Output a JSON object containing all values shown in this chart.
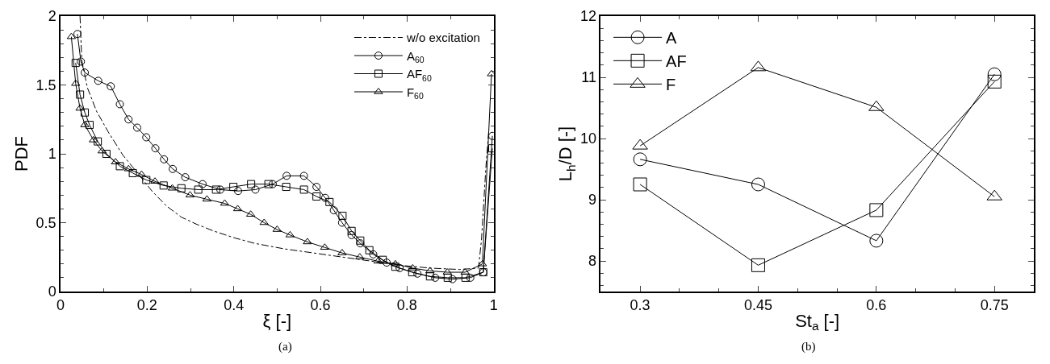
{
  "chart_data": [
    {
      "type": "line",
      "xlabel": "ξ [-]",
      "ylabel": "PDF",
      "xlim": [
        0,
        1
      ],
      "ylim": [
        0,
        2
      ],
      "xticks": [
        0,
        0.2,
        0.4,
        0.6,
        0.8,
        1
      ],
      "yticks": [
        0,
        0.5,
        1,
        1.5,
        2
      ],
      "legend": "top right",
      "annotations": [
        "(a)"
      ],
      "series": [
        {
          "name": "w/o excitation",
          "color": "#000000",
          "marker": "none",
          "line_style": "dashdot",
          "x": [
            0.045,
            0.049,
            0.062,
            0.083,
            0.11,
            0.144,
            0.178,
            0.211,
            0.245,
            0.279,
            0.313,
            0.353,
            0.401,
            0.448,
            0.516,
            0.584,
            0.651,
            0.719,
            0.786,
            0.854,
            0.921,
            0.965,
            0.972,
            0.982,
            0.989
          ],
          "values": [
            2.0,
            1.68,
            1.48,
            1.31,
            1.16,
            0.99,
            0.86,
            0.73,
            0.62,
            0.54,
            0.49,
            0.44,
            0.39,
            0.35,
            0.31,
            0.28,
            0.25,
            0.22,
            0.19,
            0.17,
            0.16,
            0.17,
            0.38,
            0.9,
            1.18
          ]
        },
        {
          "name": "A$_{60}$",
          "color": "#000000",
          "marker": "circle",
          "line_style": "solid",
          "x": [
            0.039,
            0.047,
            0.056,
            0.087,
            0.116,
            0.137,
            0.157,
            0.177,
            0.198,
            0.219,
            0.239,
            0.259,
            0.288,
            0.328,
            0.369,
            0.41,
            0.45,
            0.49,
            0.522,
            0.562,
            0.591,
            0.611,
            0.631,
            0.65,
            0.672,
            0.692,
            0.722,
            0.753,
            0.783,
            0.824,
            0.865,
            0.905,
            0.946,
            0.976,
            0.997
          ],
          "values": [
            1.87,
            1.67,
            1.59,
            1.53,
            1.49,
            1.36,
            1.25,
            1.19,
            1.12,
            1.04,
            0.96,
            0.89,
            0.83,
            0.78,
            0.74,
            0.73,
            0.74,
            0.78,
            0.84,
            0.84,
            0.76,
            0.68,
            0.59,
            0.5,
            0.41,
            0.35,
            0.27,
            0.21,
            0.17,
            0.13,
            0.1,
            0.09,
            0.1,
            0.14,
            1.13
          ]
        },
        {
          "name": "AF$_{60}$",
          "color": "#000000",
          "marker": "square",
          "line_style": "solid",
          "x": [
            0.035,
            0.045,
            0.056,
            0.067,
            0.086,
            0.106,
            0.137,
            0.167,
            0.198,
            0.238,
            0.279,
            0.318,
            0.359,
            0.399,
            0.44,
            0.48,
            0.521,
            0.562,
            0.591,
            0.621,
            0.651,
            0.672,
            0.692,
            0.713,
            0.744,
            0.773,
            0.812,
            0.853,
            0.894,
            0.935,
            0.976,
            0.997
          ],
          "values": [
            1.66,
            1.43,
            1.3,
            1.21,
            1.09,
            1.0,
            0.91,
            0.86,
            0.81,
            0.77,
            0.75,
            0.74,
            0.74,
            0.76,
            0.78,
            0.78,
            0.76,
            0.74,
            0.69,
            0.65,
            0.55,
            0.44,
            0.37,
            0.3,
            0.23,
            0.18,
            0.14,
            0.11,
            0.1,
            0.1,
            0.14,
            1.04
          ]
        },
        {
          "name": "F$_{60}$",
          "color": "#000000",
          "marker": "triangle",
          "line_style": "solid",
          "x": [
            0.025,
            0.035,
            0.045,
            0.056,
            0.076,
            0.096,
            0.127,
            0.157,
            0.187,
            0.218,
            0.258,
            0.299,
            0.338,
            0.379,
            0.409,
            0.439,
            0.47,
            0.5,
            0.53,
            0.57,
            0.61,
            0.65,
            0.691,
            0.733,
            0.773,
            0.813,
            0.853,
            0.893,
            0.934,
            0.974,
            0.995
          ],
          "values": [
            1.85,
            1.51,
            1.33,
            1.21,
            1.1,
            1.02,
            0.94,
            0.89,
            0.85,
            0.8,
            0.75,
            0.7,
            0.67,
            0.64,
            0.6,
            0.56,
            0.5,
            0.45,
            0.41,
            0.36,
            0.32,
            0.28,
            0.25,
            0.22,
            0.2,
            0.17,
            0.15,
            0.14,
            0.14,
            0.2,
            1.58
          ]
        }
      ]
    },
    {
      "type": "line",
      "xlabel": "St$_{a}$ [-]",
      "ylabel": "L$_{h}$/D [-]",
      "xlim": [
        0.25,
        0.8
      ],
      "ylim": [
        7.5,
        12
      ],
      "xticks": [
        0.3,
        0.45,
        0.6,
        0.75
      ],
      "yticks": [
        8,
        9,
        10,
        11,
        12
      ],
      "legend": "top left",
      "annotations": [
        "(b)"
      ],
      "x": [
        0.3,
        0.45,
        0.6,
        0.75
      ],
      "series": [
        {
          "name": "A",
          "color": "#000000",
          "marker": "circle",
          "line_style": "solid",
          "values": [
            9.66,
            9.25,
            8.33,
            11.05
          ]
        },
        {
          "name": "AF",
          "color": "#000000",
          "marker": "square",
          "line_style": "solid",
          "values": [
            9.25,
            7.93,
            8.83,
            10.93
          ]
        },
        {
          "name": "F",
          "color": "#000000",
          "marker": "triangle",
          "line_style": "solid",
          "values": [
            9.88,
            11.16,
            10.51,
            9.05
          ]
        }
      ]
    }
  ]
}
